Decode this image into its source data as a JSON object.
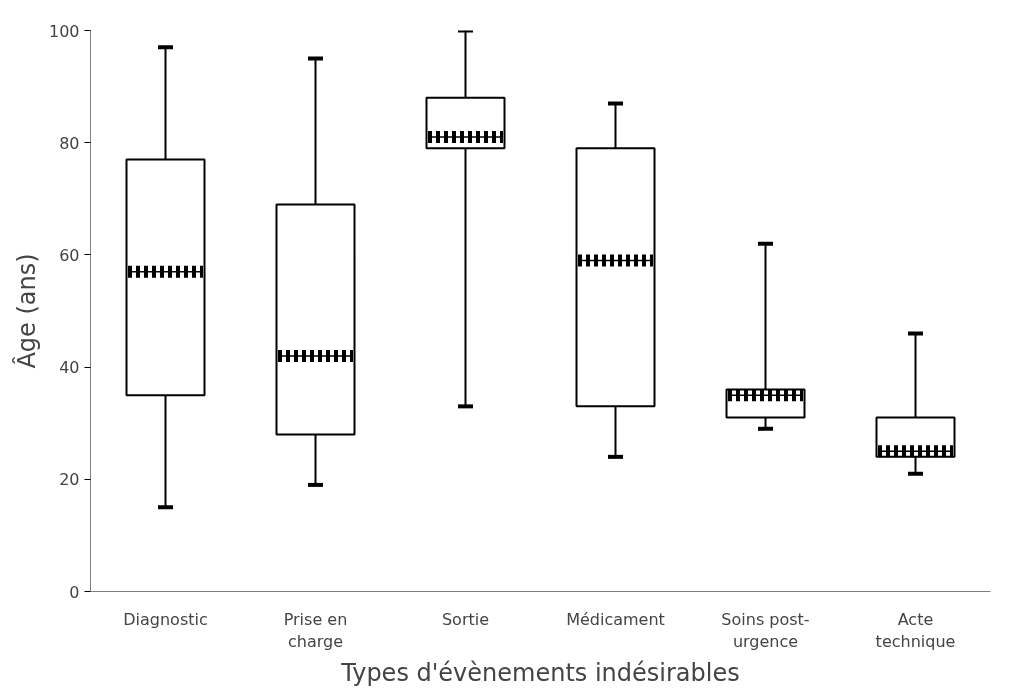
{
  "chart_data": {
    "type": "box",
    "xlabel": "Types d'évènements indésirables",
    "ylabel": "Âge (ans)",
    "categories": [
      "Diagnostic",
      "Prise en charge",
      "Sortie",
      "Médicament",
      "Soins post-urgence",
      "Acte technique"
    ],
    "boxes": [
      {
        "low": 15,
        "q1": 35,
        "median": 57,
        "q3": 77,
        "high": 97
      },
      {
        "low": 19,
        "q1": 28,
        "median": 42,
        "q3": 69,
        "high": 95
      },
      {
        "low": 33,
        "q1": 79,
        "median": 81,
        "q3": 88,
        "high": 100
      },
      {
        "low": 24,
        "q1": 33,
        "median": 59,
        "q3": 79,
        "high": 87
      },
      {
        "low": 29,
        "q1": 31,
        "median": 35,
        "q3": 36,
        "high": 62
      },
      {
        "low": 21,
        "q1": 24,
        "median": 25,
        "q3": 31,
        "high": 46
      }
    ],
    "color": "#000000",
    "ylim": [
      0,
      100
    ],
    "yticks": [
      0,
      20,
      40,
      60,
      80,
      100
    ],
    "grid": false
  }
}
